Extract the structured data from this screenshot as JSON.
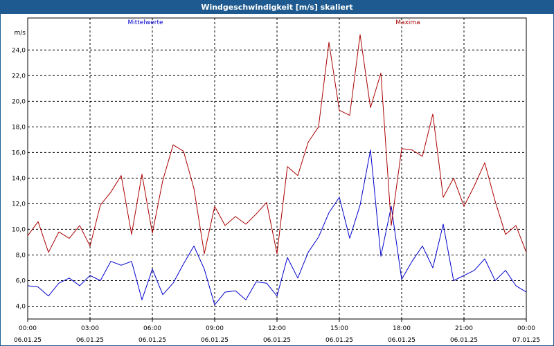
{
  "window": {
    "title": "Windgeschwindigkeit [m/s] skaliert"
  },
  "chart_data": {
    "type": "line",
    "title": "Windgeschwindigkeit [m/s] skaliert",
    "ylabel": "m/s",
    "xlabel": "",
    "ylim": [
      3.0,
      26.5
    ],
    "y_ticks": [
      4.0,
      6.0,
      8.0,
      10.0,
      12.0,
      14.0,
      16.0,
      18.0,
      20.0,
      22.0,
      24.0
    ],
    "y_tick_labels": [
      "4,0",
      "6,0",
      "8,0",
      "10,0",
      "12,0",
      "14,0",
      "16,0",
      "18,0",
      "20,0",
      "22,0",
      "24,0"
    ],
    "x_range_hours": [
      0,
      24
    ],
    "x_ticks": [
      {
        "time": "00:00",
        "date": "06.01.25"
      },
      {
        "time": "03:00",
        "date": "06.01.25"
      },
      {
        "time": "06:00",
        "date": "06.01.25"
      },
      {
        "time": "09:00",
        "date": "06.01.25"
      },
      {
        "time": "12:00",
        "date": "06.01.25"
      },
      {
        "time": "15:00",
        "date": "06.01.25"
      },
      {
        "time": "18:00",
        "date": "06.01.25"
      },
      {
        "time": "21:00",
        "date": "06.01.25"
      },
      {
        "time": "00:00",
        "date": "07.01.25"
      }
    ],
    "grid": true,
    "legend_placement": "top",
    "series": [
      {
        "name": "Mittelwerte",
        "color": "#0000cc",
        "x": [
          0,
          0.5,
          1,
          1.5,
          2,
          2.5,
          3,
          3.5,
          4,
          4.5,
          5,
          5.5,
          6,
          6.5,
          7,
          7.5,
          8,
          8.5,
          9,
          9.5,
          10,
          10.5,
          11,
          11.5,
          12,
          12.5,
          13,
          13.5,
          14,
          14.5,
          15,
          15.5,
          16,
          16.5,
          17,
          17.5,
          18,
          18.5,
          19,
          19.5,
          20,
          20.5,
          21,
          21.5,
          22,
          22.5,
          23,
          23.5,
          24
        ],
        "y": [
          5.6,
          5.5,
          4.8,
          5.8,
          6.2,
          5.6,
          6.4,
          6.0,
          7.5,
          7.2,
          7.5,
          4.5,
          6.9,
          4.9,
          5.8,
          7.3,
          8.7,
          6.9,
          4.1,
          5.1,
          5.2,
          4.5,
          5.9,
          5.8,
          4.8,
          7.8,
          6.2,
          8.2,
          9.4,
          11.3,
          12.5,
          9.3,
          11.9,
          16.2,
          7.9,
          11.8,
          6.1,
          7.5,
          8.7,
          7.0,
          10.4,
          6.0,
          6.4,
          6.8,
          7.7,
          6.0,
          6.8,
          5.6,
          5.1
        ]
      },
      {
        "name": "Maxima",
        "color": "#aa0000",
        "x": [
          0,
          0.5,
          1,
          1.5,
          2,
          2.5,
          3,
          3.5,
          4,
          4.5,
          5,
          5.5,
          6,
          6.5,
          7,
          7.5,
          8,
          8.5,
          9,
          9.5,
          10,
          10.5,
          11,
          11.5,
          12,
          12.5,
          13,
          13.5,
          14,
          14.5,
          15,
          15.5,
          16,
          16.5,
          17,
          17.5,
          18,
          18.5,
          19,
          19.5,
          20,
          20.5,
          21,
          21.5,
          22,
          22.5,
          23,
          23.5,
          24
        ],
        "y": [
          9.5,
          10.6,
          8.2,
          9.8,
          9.3,
          10.3,
          8.7,
          11.9,
          12.9,
          14.2,
          9.6,
          14.3,
          9.7,
          13.8,
          16.6,
          16.1,
          13.2,
          8.1,
          11.8,
          10.3,
          11.0,
          10.4,
          11.2,
          12.1,
          8.1,
          14.9,
          14.2,
          16.8,
          18.0,
          24.6,
          19.3,
          18.9,
          25.2,
          19.5,
          22.2,
          10.3,
          16.3,
          16.2,
          15.7,
          19.0,
          12.5,
          14.0,
          11.8,
          13.4,
          15.2,
          12.2,
          9.6,
          10.3,
          8.2
        ]
      }
    ]
  }
}
